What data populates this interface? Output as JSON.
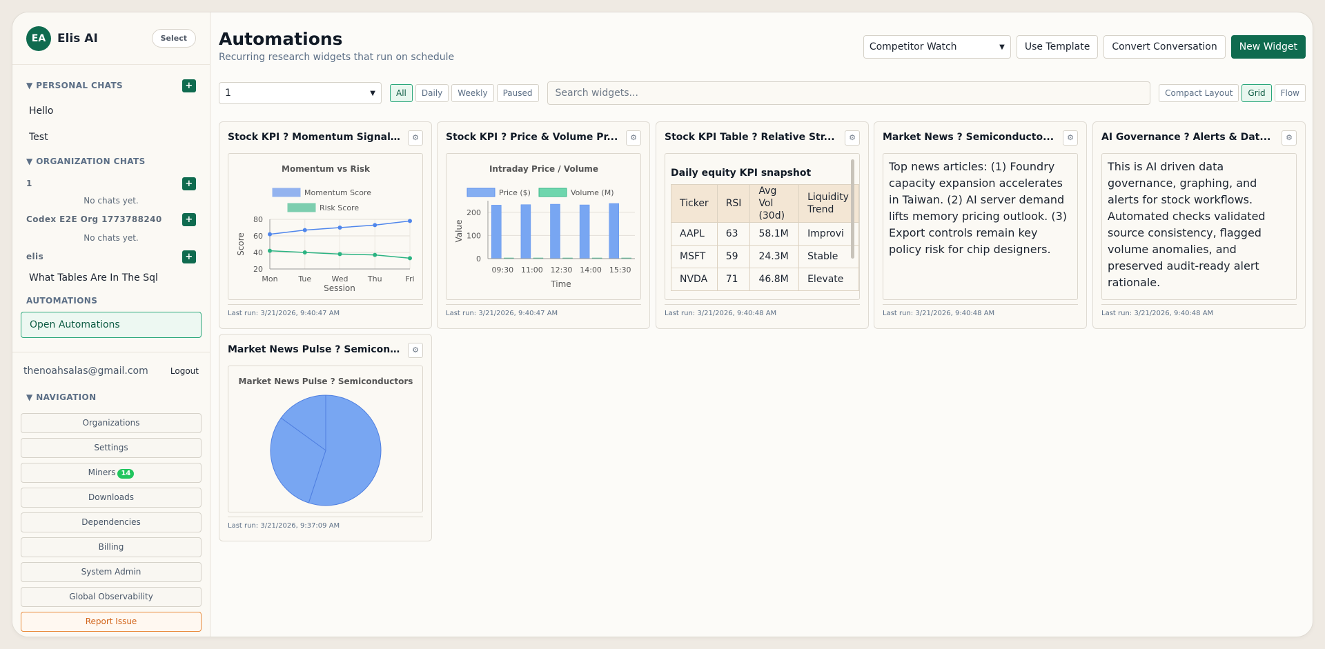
{
  "brand": {
    "initials": "EA",
    "name": "Elis AI",
    "select_label": "Select"
  },
  "sidebar": {
    "personal_heading": "▼ PERSONAL CHATS",
    "personal_chats": [
      "Hello",
      "Test"
    ],
    "org_heading": "▼ ORGANIZATION CHATS",
    "orgs": [
      {
        "name": "1",
        "empty": "No chats yet."
      },
      {
        "name": "Codex E2E Org 1773788240",
        "empty": "No chats yet."
      },
      {
        "name": "elis",
        "chat": "What Tables Are In The Sql"
      }
    ],
    "automations_heading": "AUTOMATIONS",
    "open_automations": "Open Automations",
    "user_email": "thenoahsalas@gmail.com",
    "logout": "Logout",
    "nav_heading": "▼ NAVIGATION",
    "nav": [
      "Organizations",
      "Settings",
      "Miners",
      "Downloads",
      "Dependencies",
      "Billing",
      "System Admin",
      "Global Observability"
    ],
    "miners_badge": "14",
    "report_issue": "Report Issue"
  },
  "header": {
    "title": "Automations",
    "subtitle": "Recurring research widgets that run on schedule",
    "template_select": "Competitor Watch",
    "use_template": "Use Template",
    "convert_conversation": "Convert Conversation",
    "new_widget": "New Widget"
  },
  "filters": {
    "org_select": "1",
    "chips": [
      "All",
      "Daily",
      "Weekly",
      "Paused"
    ],
    "search_placeholder": "Search widgets...",
    "layouts": [
      "Compact Layout",
      "Grid",
      "Flow"
    ]
  },
  "cards": [
    {
      "title": "Stock KPI ? Momentum Signal...",
      "last_run": "Last run: 3/21/2026, 9:40:47 AM"
    },
    {
      "title": "Stock KPI ? Price & Volume Pr...",
      "last_run": "Last run: 3/21/2026, 9:40:47 AM"
    },
    {
      "title": "Stock KPI Table ? Relative Str...",
      "last_run": "Last run: 3/21/2026, 9:40:48 AM"
    },
    {
      "title": "Market News ? Semiconducto...",
      "last_run": "Last run: 3/21/2026, 9:40:48 AM",
      "text": "Top news articles: (1) Foundry capacity expansion accelerates in Taiwan. (2) AI server demand lifts memory pricing outlook. (3) Export controls remain key policy risk for chip designers."
    },
    {
      "title": "AI Governance ? Alerts & Dat...",
      "last_run": "Last run: 3/21/2026, 9:40:48 AM",
      "text": "This is AI driven data governance, graphing, and alerts for stock workflows. Automated checks validated source consistency, flagged volume anomalies, and preserved audit-ready alert rationale."
    },
    {
      "title": "Market News Pulse ? Semicon...",
      "last_run": "Last run: 3/21/2026, 9:37:09 AM"
    }
  ],
  "kpi_table": {
    "title": "Daily equity KPI snapshot",
    "headers": [
      "Ticker",
      "RSI",
      "Avg Vol (30d)",
      "Liquidity Trend"
    ],
    "rows": [
      [
        "AAPL",
        "63",
        "58.1M",
        "Improvi"
      ],
      [
        "MSFT",
        "59",
        "24.3M",
        "Stable"
      ],
      [
        "NVDA",
        "71",
        "46.8M",
        "Elevate"
      ]
    ]
  },
  "chart_data": [
    {
      "type": "line",
      "title": "Momentum vs Risk",
      "categories": [
        "Mon",
        "Tue",
        "Wed",
        "Thu",
        "Fri"
      ],
      "series": [
        {
          "name": "Momentum Score",
          "values": [
            62,
            67,
            70,
            73,
            78
          ],
          "color": "#4f86ec"
        },
        {
          "name": "Risk Score",
          "values": [
            42,
            40,
            38,
            37,
            33
          ],
          "color": "#2bb382"
        }
      ],
      "xlabel": "Session",
      "ylabel": "Score",
      "ylim": [
        20,
        80
      ],
      "yticks": [
        20,
        40,
        60,
        80
      ]
    },
    {
      "type": "bar",
      "title": "Intraday Price / Volume",
      "categories": [
        "09:30",
        "11:00",
        "12:30",
        "14:00",
        "15:30"
      ],
      "series": [
        {
          "name": "Price ($)",
          "values": [
            231,
            233,
            235,
            232,
            238
          ],
          "color": "#78a6f2"
        },
        {
          "name": "Volume (M)",
          "values": [
            0,
            0,
            0,
            0,
            0
          ],
          "color": "#5fd3a6"
        }
      ],
      "xlabel": "Time",
      "ylabel": "Value",
      "ylim": [
        0,
        250
      ],
      "yticks": [
        0,
        100,
        200
      ]
    },
    {
      "type": "pie",
      "title": "Market News Pulse ? Semiconductors",
      "values": [
        55,
        30,
        15
      ],
      "colors": [
        "#78a6f2",
        "#78a6f2",
        "#78a6f2"
      ]
    }
  ]
}
